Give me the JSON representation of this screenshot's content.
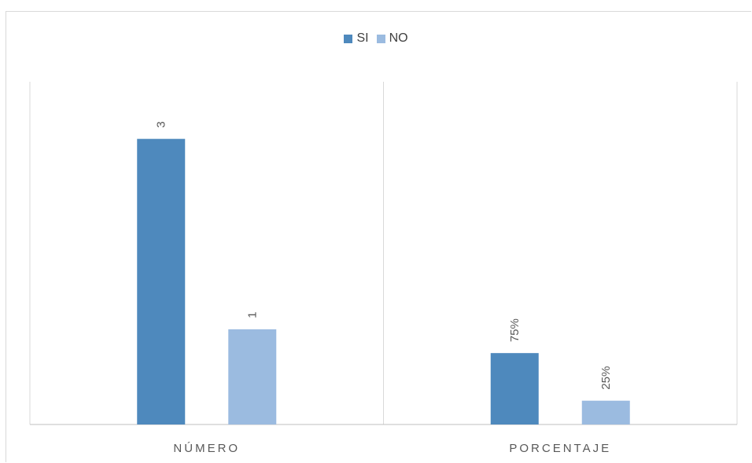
{
  "chart_data": {
    "type": "bar",
    "categories": [
      "NÚMERO",
      "PORCENTAJE"
    ],
    "series": [
      {
        "name": "SI",
        "values": [
          3,
          0.75
        ],
        "labels": [
          "3",
          "75%"
        ],
        "color": "#4e89bd"
      },
      {
        "name": "NO",
        "values": [
          1,
          0.25
        ],
        "labels": [
          "1",
          "25%"
        ],
        "color": "#9bbbe0"
      }
    ],
    "ylim": [
      0,
      3.6
    ],
    "grid": false,
    "legend_position": "top"
  }
}
